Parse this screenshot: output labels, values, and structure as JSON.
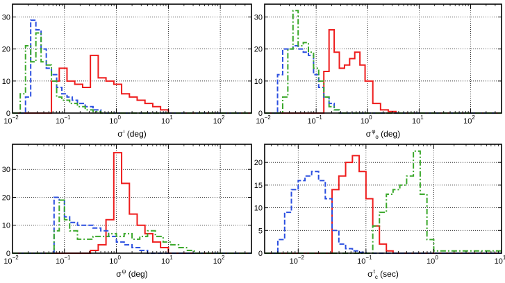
{
  "figure": {
    "panels": [
      {
        "id": "p1",
        "xlabel": {
          "pre": "σ",
          "sup": "ι",
          "post": " (deg)"
        },
        "xscale": "log",
        "xlim": [
          0.01,
          398
        ],
        "xticks": [
          0.01,
          0.1,
          1,
          10,
          100
        ],
        "ylim": [
          0,
          34
        ],
        "yticks": [
          0,
          10,
          20,
          30
        ],
        "legend": "none"
      },
      {
        "id": "p2",
        "xlabel": {
          "pre": "σ",
          "sup": "φ",
          "sub": "o",
          "post": " (deg)"
        },
        "xscale": "log",
        "xlim": [
          0.01,
          398
        ],
        "xticks": [
          0.01,
          0.1,
          1,
          10,
          100
        ],
        "ylim": [
          0,
          34
        ],
        "yticks": [
          0,
          10,
          20,
          30
        ],
        "legend": "none"
      },
      {
        "id": "p3",
        "xlabel": {
          "pre": "σ",
          "sup": "ψ",
          "post": " (deg)"
        },
        "xscale": "log",
        "xlim": [
          0.01,
          398
        ],
        "xticks": [
          0.01,
          0.1,
          1,
          10,
          100
        ],
        "ylim": [
          0,
          39
        ],
        "yticks": [
          0,
          10,
          20,
          30
        ],
        "legend": "none"
      },
      {
        "id": "p4",
        "xlabel": {
          "pre": "σ",
          "sup": "t",
          "sub": "c",
          "post": " (sec)"
        },
        "xscale": "log",
        "xlim": [
          0.0032,
          10
        ],
        "xticks": [
          0.01,
          0.1,
          1,
          10
        ],
        "ylim": [
          0,
          24
        ],
        "yticks": [
          0,
          5,
          10,
          15,
          20
        ],
        "legend": "none"
      }
    ]
  },
  "chart_data": [
    {
      "type": "histogram",
      "title": "",
      "xlabel": "σ^ι (deg)",
      "ylabel": "",
      "xlim": [
        0.01,
        398
      ],
      "ylim": [
        0,
        34
      ],
      "grid": true,
      "series": [
        {
          "name": "red",
          "color": "#ee1c1c",
          "style": "solid",
          "edges": [
            0.01,
            0.0562,
            0.0794,
            0.112,
            0.158,
            0.224,
            0.316,
            0.447,
            0.631,
            0.891,
            1.26,
            1.78,
            2.51,
            3.55,
            5.01,
            7.08,
            10,
            398
          ],
          "values": [
            0,
            10,
            14,
            10,
            9,
            8,
            18,
            11,
            10,
            9,
            6,
            5,
            4,
            3,
            2,
            1,
            0
          ]
        },
        {
          "name": "blue",
          "color": "#2b4fe0",
          "style": "dashed",
          "edges": [
            0.01,
            0.0178,
            0.0224,
            0.0282,
            0.0355,
            0.0447,
            0.0562,
            0.0708,
            0.0891,
            0.112,
            0.141,
            0.178,
            0.251,
            0.355,
            0.501,
            398
          ],
          "values": [
            0,
            5,
            29,
            26,
            20,
            14,
            12,
            8,
            6,
            5,
            4,
            3,
            2,
            1,
            0
          ]
        },
        {
          "name": "green",
          "color": "#3aa82a",
          "style": "dashdot",
          "edges": [
            0.01,
            0.0141,
            0.0178,
            0.0224,
            0.0282,
            0.0355,
            0.0447,
            0.0562,
            0.0708,
            0.0891,
            0.126,
            0.178,
            0.251,
            0.355,
            0.501,
            398
          ],
          "values": [
            0,
            6,
            21,
            16,
            25,
            16,
            15,
            10,
            5,
            4,
            3,
            2,
            1,
            0.5,
            0
          ]
        }
      ]
    },
    {
      "type": "histogram",
      "title": "",
      "xlabel": "σ^φ_o (deg)",
      "ylabel": "",
      "xlim": [
        0.01,
        398
      ],
      "ylim": [
        0,
        34
      ],
      "grid": true,
      "series": [
        {
          "name": "red",
          "color": "#ee1c1c",
          "style": "solid",
          "edges": [
            0.01,
            0.141,
            0.178,
            0.224,
            0.282,
            0.355,
            0.447,
            0.562,
            0.708,
            0.891,
            1.26,
            1.78,
            2.51,
            3.55,
            398
          ],
          "values": [
            0,
            13,
            26,
            19,
            14,
            15,
            17,
            19,
            15,
            10,
            3,
            1,
            0.5,
            0
          ]
        },
        {
          "name": "blue",
          "color": "#2b4fe0",
          "style": "dashed",
          "edges": [
            0.01,
            0.0178,
            0.0224,
            0.0282,
            0.0355,
            0.0447,
            0.0562,
            0.0708,
            0.0891,
            0.112,
            0.141,
            0.178,
            0.224,
            0.282,
            398
          ],
          "values": [
            0,
            12,
            20,
            20,
            21,
            20,
            19,
            18,
            12,
            8,
            5,
            3,
            1,
            0
          ]
        },
        {
          "name": "green",
          "color": "#3aa82a",
          "style": "dashdot",
          "edges": [
            0.01,
            0.0224,
            0.0282,
            0.0355,
            0.0447,
            0.0562,
            0.0708,
            0.0891,
            0.112,
            0.141,
            0.178,
            0.224,
            0.282,
            398
          ],
          "values": [
            0,
            5,
            20,
            32,
            21,
            22,
            19,
            14,
            10,
            5,
            2,
            1,
            0
          ]
        }
      ]
    },
    {
      "type": "histogram",
      "title": "",
      "xlabel": "σ^ψ (deg)",
      "ylabel": "",
      "xlim": [
        0.01,
        398
      ],
      "ylim": [
        0,
        39
      ],
      "grid": true,
      "series": [
        {
          "name": "red",
          "color": "#ee1c1c",
          "style": "solid",
          "edges": [
            0.01,
            0.316,
            0.447,
            0.631,
            0.891,
            1.26,
            1.78,
            2.51,
            3.55,
            5.01,
            7.08,
            10,
            398
          ],
          "values": [
            0,
            1,
            3,
            12,
            36,
            25,
            14,
            10,
            7,
            4,
            2,
            0
          ]
        },
        {
          "name": "blue",
          "color": "#2b4fe0",
          "style": "dashed",
          "edges": [
            0.01,
            0.0631,
            0.0794,
            0.1,
            0.126,
            0.178,
            0.251,
            0.355,
            0.501,
            0.708,
            1,
            1.41,
            2,
            2.82,
            3.98,
            398
          ],
          "values": [
            0,
            20,
            19,
            13,
            11,
            10,
            10,
            9,
            8,
            6,
            4,
            3,
            2,
            1,
            0
          ]
        },
        {
          "name": "green",
          "color": "#3aa82a",
          "style": "dashdot",
          "edges": [
            0.01,
            0.0631,
            0.0794,
            0.1,
            0.126,
            0.178,
            0.251,
            0.355,
            0.501,
            0.708,
            1,
            1.41,
            2,
            2.82,
            3.98,
            5.62,
            7.94,
            11.2,
            15.8,
            22.4,
            31.6,
            398
          ],
          "values": [
            0,
            8,
            19,
            12,
            8,
            5,
            5,
            6,
            6,
            7,
            6,
            7,
            5,
            6,
            8,
            6,
            4,
            3,
            2,
            1,
            0
          ]
        }
      ]
    },
    {
      "type": "histogram",
      "title": "",
      "xlabel": "σ^t_c (sec)",
      "ylabel": "",
      "xlim": [
        0.0032,
        10
      ],
      "ylim": [
        0,
        24
      ],
      "grid": true,
      "series": [
        {
          "name": "red",
          "color": "#ee1c1c",
          "style": "solid",
          "edges": [
            0.0032,
            0.0316,
            0.0398,
            0.0501,
            0.0631,
            0.0794,
            0.1,
            0.126,
            0.158,
            0.2,
            0.251,
            10
          ],
          "values": [
            0,
            14,
            17,
            20,
            21.5,
            18,
            12,
            6,
            2,
            0.5,
            0
          ]
        },
        {
          "name": "blue",
          "color": "#2b4fe0",
          "style": "dashed",
          "edges": [
            0.0032,
            0.00501,
            0.00631,
            0.00794,
            0.01,
            0.0126,
            0.0158,
            0.02,
            0.0251,
            0.0316,
            0.0398,
            0.0501,
            0.0631,
            0.0794,
            0.1,
            10
          ],
          "values": [
            0,
            3,
            9,
            14,
            16,
            17,
            18,
            16,
            12,
            5,
            2,
            1,
            0.5,
            0.2,
            0
          ]
        },
        {
          "name": "green",
          "color": "#3aa82a",
          "style": "dashdot",
          "edges": [
            0.0032,
            0.126,
            0.158,
            0.2,
            0.251,
            0.316,
            0.398,
            0.501,
            0.631,
            0.794,
            1,
            10
          ],
          "values": [
            0,
            6,
            9,
            13,
            14,
            15,
            17,
            22.5,
            13,
            3,
            0.5,
            0
          ]
        }
      ]
    }
  ]
}
